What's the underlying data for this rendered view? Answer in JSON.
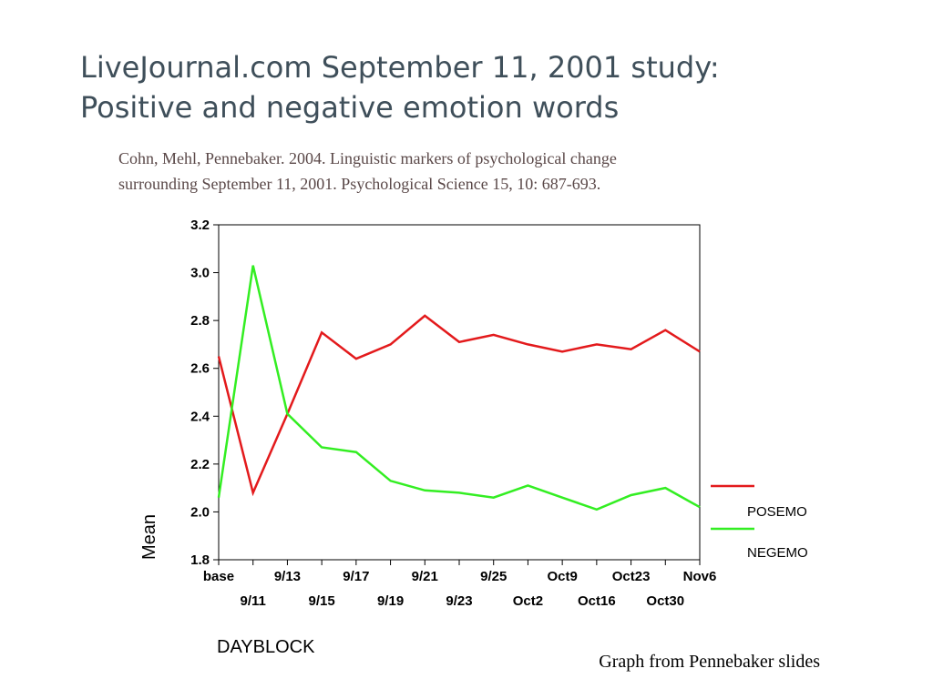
{
  "title": {
    "line1": "LiveJournal.com September 11, 2001 study:",
    "line2": "Positive and negative emotion words"
  },
  "citation": {
    "line1": "Cohn,  Mehl, Pennebaker. 2004.  Linguistic markers of psychological change",
    "line2": "surrounding September 11, 2001. Psychological Science 15, 10: 687-693."
  },
  "credit": "Graph from Pennebaker slides",
  "chart_data": {
    "type": "line",
    "title": "",
    "xlabel": "DAYBLOCK",
    "ylabel": "Mean",
    "ylim": [
      1.8,
      3.2
    ],
    "yticks": [
      "1.8",
      "2.0",
      "2.2",
      "2.4",
      "2.6",
      "2.8",
      "3.0",
      "3.2"
    ],
    "categories": [
      "base",
      "9/11",
      "9/13",
      "9/15",
      "9/17",
      "9/19",
      "9/21",
      "9/23",
      "9/25",
      "Oct2",
      "Oct9",
      "Oct16",
      "Oct23",
      "Oct30",
      "Nov6"
    ],
    "grid": false,
    "legend_position": "right",
    "series": [
      {
        "name": "POSEMO",
        "color": "#e31a1c",
        "values": [
          2.65,
          2.08,
          2.41,
          2.75,
          2.64,
          2.7,
          2.82,
          2.71,
          2.74,
          2.7,
          2.67,
          2.7,
          2.68,
          2.76,
          2.67
        ]
      },
      {
        "name": "NEGEMO",
        "color": "#33ee22",
        "values": [
          2.06,
          3.03,
          2.41,
          2.27,
          2.25,
          2.13,
          2.09,
          2.08,
          2.06,
          2.11,
          2.06,
          2.01,
          2.07,
          2.1,
          2.02
        ]
      }
    ]
  }
}
